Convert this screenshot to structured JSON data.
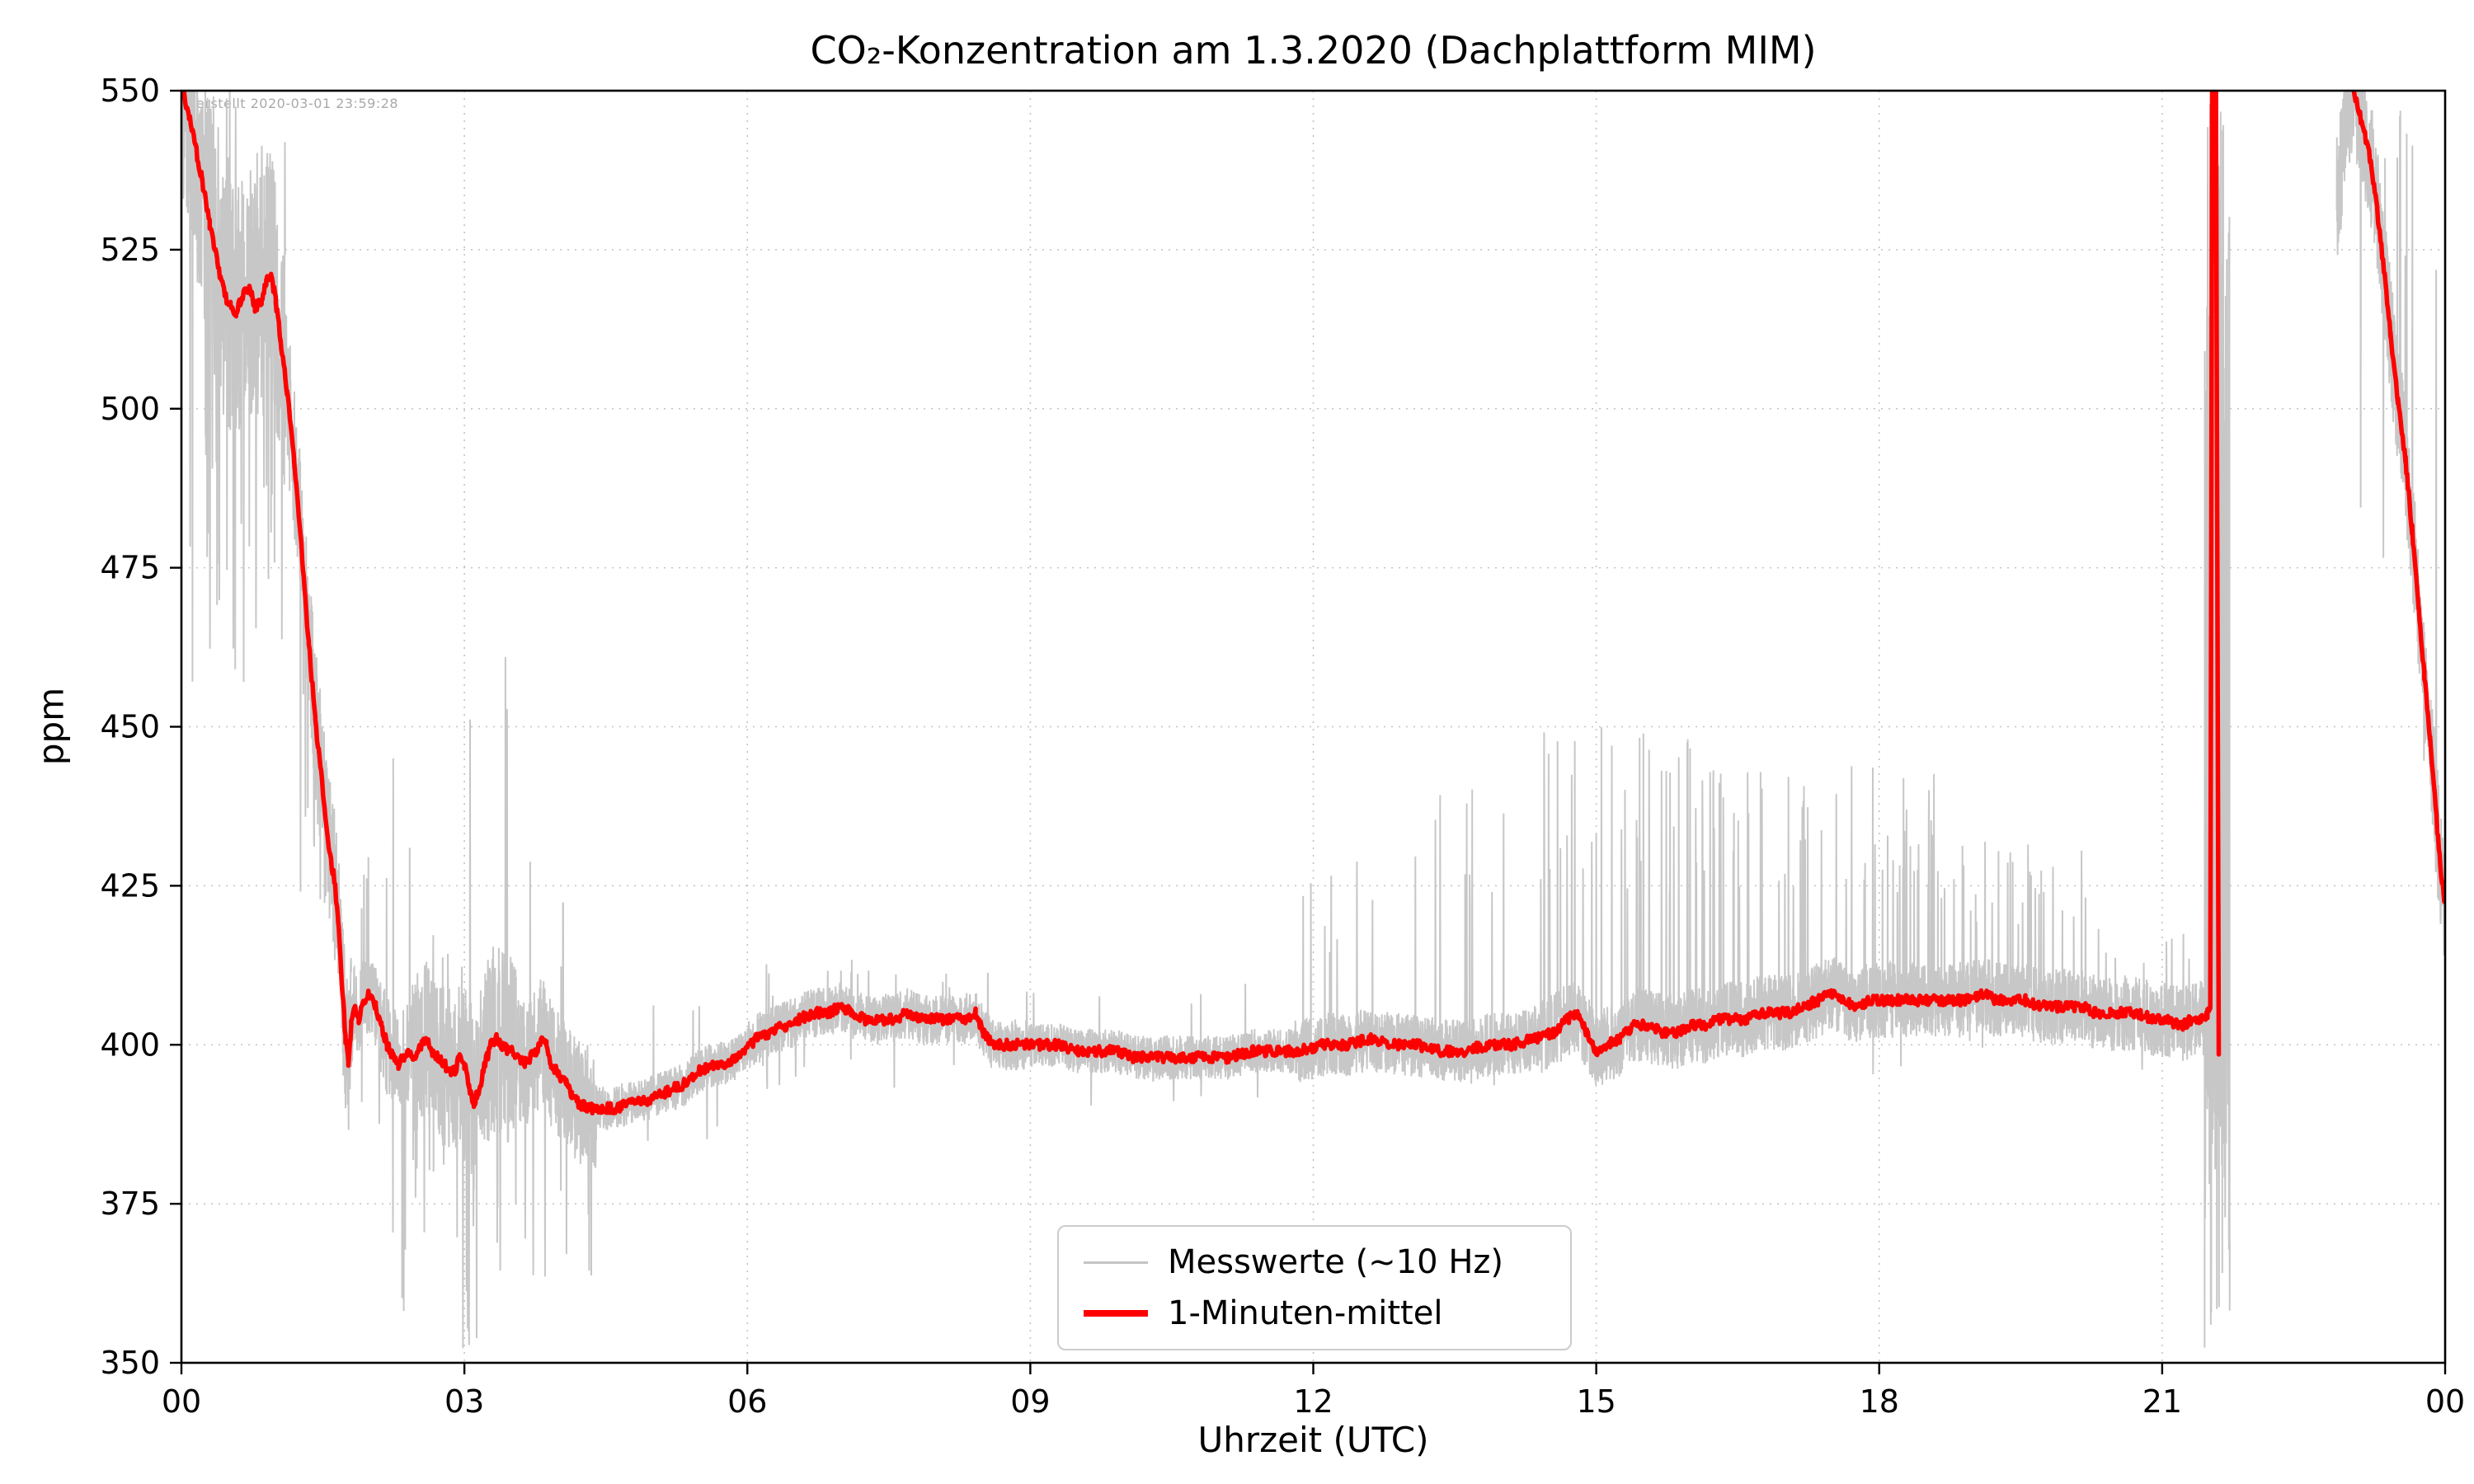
{
  "figure": {
    "title": "CO₂-Konzentration am 1.3.2020 (Dachplattform MIM)",
    "watermark": "erstellt 2020-03-01 23:59:28",
    "xlabel": "Uhrzeit (UTC)",
    "ylabel": "ppm"
  },
  "legend": {
    "items": [
      {
        "label": "Messwerte (~10 Hz)",
        "color": "#c4c4c4",
        "thickness": 3
      },
      {
        "label": "1-Minuten-mittel",
        "color": "#ff0000",
        "thickness": 8
      }
    ]
  },
  "chart_data": {
    "type": "line",
    "title": "CO₂-Konzentration am 1.3.2020 (Dachplattform MIM)",
    "xlabel": "Uhrzeit (UTC)",
    "ylabel": "ppm",
    "xlim": [
      0,
      24
    ],
    "ylim": [
      350,
      550
    ],
    "x_ticks": {
      "values": [
        0,
        3,
        6,
        9,
        12,
        15,
        18,
        21,
        24
      ],
      "labels": [
        "00",
        "03",
        "06",
        "09",
        "12",
        "15",
        "18",
        "21",
        "00"
      ]
    },
    "y_ticks": [
      350,
      375,
      400,
      425,
      450,
      475,
      500,
      525,
      550
    ],
    "grid": "dotted",
    "grid_color": "#b0b0b0",
    "frame_color": "#000000",
    "series": [
      {
        "name": "1-Minuten-mittel",
        "color": "#ff0000",
        "style": "line",
        "segments": [
          [
            [
              0.0,
              551
            ],
            [
              0.08,
              546
            ],
            [
              0.15,
              541
            ],
            [
              0.22,
              536
            ],
            [
              0.3,
              529
            ],
            [
              0.38,
              523
            ],
            [
              0.46,
              518
            ],
            [
              0.52,
              516
            ],
            [
              0.58,
              515
            ],
            [
              0.65,
              518
            ],
            [
              0.72,
              519
            ],
            [
              0.78,
              516
            ],
            [
              0.85,
              517
            ],
            [
              0.9,
              520
            ],
            [
              0.95,
              521
            ],
            [
              1.0,
              517
            ],
            [
              1.05,
              511
            ],
            [
              1.12,
              503
            ],
            [
              1.2,
              491
            ],
            [
              1.28,
              477
            ],
            [
              1.35,
              463
            ],
            [
              1.42,
              451
            ],
            [
              1.5,
              440
            ],
            [
              1.56,
              431
            ],
            [
              1.62,
              426
            ],
            [
              1.66,
              420
            ],
            [
              1.7,
              410
            ],
            [
              1.74,
              401
            ],
            [
              1.77,
              397
            ],
            [
              1.8,
              403
            ],
            [
              1.84,
              406
            ],
            [
              1.88,
              404
            ],
            [
              1.93,
              407
            ],
            [
              2.0,
              408
            ],
            [
              2.06,
              406
            ],
            [
              2.12,
              403
            ],
            [
              2.18,
              400
            ],
            [
              2.24,
              398
            ],
            [
              2.3,
              397
            ],
            [
              2.36,
              398
            ],
            [
              2.42,
              399
            ],
            [
              2.48,
              398
            ],
            [
              2.54,
              400
            ],
            [
              2.6,
              401
            ],
            [
              2.66,
              399
            ],
            [
              2.72,
              398
            ],
            [
              2.78,
              397
            ],
            [
              2.84,
              396
            ],
            [
              2.9,
              396
            ],
            [
              2.95,
              398
            ],
            [
              3.0,
              397
            ],
            [
              3.05,
              393
            ],
            [
              3.1,
              391
            ],
            [
              3.16,
              393
            ],
            [
              3.22,
              397
            ],
            [
              3.28,
              400
            ],
            [
              3.34,
              401
            ],
            [
              3.4,
              400
            ],
            [
              3.46,
              399
            ],
            [
              3.52,
              399
            ],
            [
              3.58,
              398
            ],
            [
              3.64,
              397
            ],
            [
              3.7,
              398
            ],
            [
              3.76,
              399
            ],
            [
              3.82,
              401
            ],
            [
              3.87,
              400
            ],
            [
              3.92,
              397
            ],
            [
              3.97,
              396
            ],
            [
              4.02,
              395
            ],
            [
              4.08,
              394
            ],
            [
              4.14,
              392
            ],
            [
              4.2,
              391
            ],
            [
              4.3,
              390
            ],
            [
              4.45,
              390
            ],
            [
              4.6,
              390
            ],
            [
              4.75,
              391
            ],
            [
              4.9,
              391
            ],
            [
              5.05,
              392
            ],
            [
              5.2,
              393
            ],
            [
              5.35,
              394
            ],
            [
              5.5,
              396
            ],
            [
              5.65,
              397
            ],
            [
              5.8,
              397
            ],
            [
              5.95,
              399
            ],
            [
              6.1,
              401
            ],
            [
              6.25,
              402
            ],
            [
              6.4,
              403
            ],
            [
              6.55,
              404
            ],
            [
              6.7,
              405
            ],
            [
              6.85,
              405
            ],
            [
              7.0,
              406
            ],
            [
              7.1,
              405
            ],
            [
              7.25,
              404
            ],
            [
              7.4,
              404
            ],
            [
              7.55,
              404
            ],
            [
              7.7,
              405
            ],
            [
              7.85,
              404
            ],
            [
              8.0,
              404
            ],
            [
              8.15,
              404
            ],
            [
              8.3,
              404
            ],
            [
              8.42,
              405
            ],
            [
              8.5,
              402
            ],
            [
              8.6,
              400
            ],
            [
              8.75,
              400
            ],
            [
              8.9,
              400
            ],
            [
              9.1,
              400
            ],
            [
              9.3,
              400
            ],
            [
              9.5,
              399
            ],
            [
              9.7,
              399
            ],
            [
              9.9,
              399
            ],
            [
              10.1,
              398
            ],
            [
              10.35,
              398
            ],
            [
              10.6,
              398
            ],
            [
              10.85,
              398
            ],
            [
              11.1,
              398
            ],
            [
              11.35,
              399
            ],
            [
              11.6,
              399
            ],
            [
              11.85,
              399
            ],
            [
              12.1,
              400
            ],
            [
              12.35,
              400
            ],
            [
              12.6,
              401
            ],
            [
              12.85,
              400
            ],
            [
              13.1,
              400
            ],
            [
              13.35,
              399
            ],
            [
              13.6,
              399
            ],
            [
              13.85,
              400
            ],
            [
              14.1,
              400
            ],
            [
              14.35,
              401
            ],
            [
              14.55,
              402
            ],
            [
              14.7,
              404
            ],
            [
              14.8,
              405
            ],
            [
              14.9,
              402
            ],
            [
              15.0,
              399
            ],
            [
              15.1,
              400
            ],
            [
              15.25,
              401
            ],
            [
              15.4,
              403
            ],
            [
              15.55,
              403
            ],
            [
              15.7,
              402
            ],
            [
              15.85,
              402
            ],
            [
              16.0,
              403
            ],
            [
              16.15,
              403
            ],
            [
              16.3,
              404
            ],
            [
              16.45,
              404
            ],
            [
              16.6,
              404
            ],
            [
              16.75,
              405
            ],
            [
              16.9,
              405
            ],
            [
              17.05,
              405
            ],
            [
              17.2,
              406
            ],
            [
              17.35,
              407
            ],
            [
              17.5,
              408
            ],
            [
              17.62,
              407
            ],
            [
              17.75,
              406
            ],
            [
              17.9,
              407
            ],
            [
              18.05,
              407
            ],
            [
              18.2,
              407
            ],
            [
              18.35,
              407
            ],
            [
              18.5,
              407
            ],
            [
              18.65,
              407
            ],
            [
              18.8,
              407
            ],
            [
              18.95,
              407
            ],
            [
              19.1,
              408
            ],
            [
              19.25,
              407
            ],
            [
              19.4,
              407
            ],
            [
              19.55,
              407
            ],
            [
              19.7,
              406
            ],
            [
              19.85,
              406
            ],
            [
              20.0,
              406
            ],
            [
              20.15,
              406
            ],
            [
              20.3,
              405
            ],
            [
              20.45,
              405
            ],
            [
              20.6,
              405
            ],
            [
              20.75,
              405
            ],
            [
              20.9,
              404
            ],
            [
              21.05,
              404
            ],
            [
              21.2,
              403
            ],
            [
              21.32,
              404
            ],
            [
              21.42,
              404
            ],
            [
              21.48,
              405
            ],
            [
              21.51,
              406
            ],
            [
              21.53,
              551
            ],
            [
              21.57,
              551
            ],
            [
              21.6,
              398
            ]
          ],
          [
            [
              23.02,
              551
            ],
            [
              23.08,
              547
            ],
            [
              23.15,
              543
            ],
            [
              23.22,
              538
            ],
            [
              23.28,
              531
            ],
            [
              23.35,
              522
            ],
            [
              23.42,
              512
            ],
            [
              23.5,
              501
            ],
            [
              23.58,
              492
            ],
            [
              23.65,
              481
            ],
            [
              23.72,
              468
            ],
            [
              23.78,
              458
            ],
            [
              23.84,
              448
            ],
            [
              23.9,
              437
            ],
            [
              23.95,
              428
            ],
            [
              24.0,
              422
            ]
          ]
        ]
      },
      {
        "name": "Messwerte (~10 Hz)",
        "color": "#c4c4c4",
        "style": "raw-noise-around-mean",
        "envelope_segments": [
          {
            "t0": 0.0,
            "t1": 1.1,
            "spread": 20,
            "up": 551,
            "pUp": 0.06,
            "down": 455,
            "pDown": 0.05
          },
          {
            "t0": 1.1,
            "t1": 1.8,
            "spread": 12,
            "up": 452,
            "pUp": 0.01,
            "down": 420,
            "pDown": 0.04
          },
          {
            "t0": 1.8,
            "t1": 2.1,
            "spread": 7,
            "up": 430,
            "pUp": 0.02,
            "down": 385,
            "pDown": 0.02
          },
          {
            "t0": 2.1,
            "t1": 2.45,
            "spread": 8,
            "up": 452,
            "pUp": 0.015,
            "down": 352,
            "pDown": 0.02
          },
          {
            "t0": 2.45,
            "t1": 2.95,
            "spread": 13,
            "up": 425,
            "pUp": 0.02,
            "down": 368,
            "pDown": 0.03
          },
          {
            "t0": 2.95,
            "t1": 3.55,
            "spread": 15,
            "up": 472,
            "pUp": 0.01,
            "down": 351,
            "pDown": 0.04
          },
          {
            "t0": 3.55,
            "t1": 4.4,
            "spread": 10,
            "up": 430,
            "pUp": 0.02,
            "down": 362,
            "pDown": 0.02
          },
          {
            "t0": 4.4,
            "t1": 6.0,
            "spread": 3.5,
            "up": 412,
            "pUp": 0.005,
            "down": 384,
            "pDown": 0.005
          },
          {
            "t0": 6.0,
            "t1": 9.0,
            "spread": 4,
            "up": 414,
            "pUp": 0.008,
            "down": 392,
            "pDown": 0.005
          },
          {
            "t0": 9.0,
            "t1": 11.8,
            "spread": 3.5,
            "up": 410,
            "pUp": 0.005,
            "down": 390,
            "pDown": 0.004
          },
          {
            "t0": 11.8,
            "t1": 12.6,
            "spread": 5,
            "up": 430,
            "pUp": 0.02,
            "down": 392,
            "pDown": 0.004
          },
          {
            "t0": 12.6,
            "t1": 14.4,
            "spread": 5,
            "up": 442,
            "pUp": 0.015,
            "down": 392,
            "pDown": 0.004
          },
          {
            "t0": 14.4,
            "t1": 16.1,
            "spread": 6,
            "up": 450,
            "pUp": 0.05,
            "down": 393,
            "pDown": 0.004
          },
          {
            "t0": 16.1,
            "t1": 18.6,
            "spread": 6,
            "up": 444,
            "pUp": 0.05,
            "down": 395,
            "pDown": 0.004
          },
          {
            "t0": 18.6,
            "t1": 20.2,
            "spread": 6,
            "up": 432,
            "pUp": 0.035,
            "down": 396,
            "pDown": 0.004
          },
          {
            "t0": 20.2,
            "t1": 21.45,
            "spread": 6,
            "up": 421,
            "pUp": 0.025,
            "down": 394,
            "pDown": 0.004
          },
          {
            "t0": 21.45,
            "t1": 21.72,
            "spread": 70,
            "up": 551,
            "pUp": 0.25,
            "down": 351,
            "pDown": 0.25,
            "base": 450
          },
          {
            "t0": 22.85,
            "t1": 24.0,
            "spread": 10,
            "up": 551,
            "pUp": 0.02,
            "down": 444,
            "pDown": 0.012
          }
        ]
      }
    ]
  }
}
